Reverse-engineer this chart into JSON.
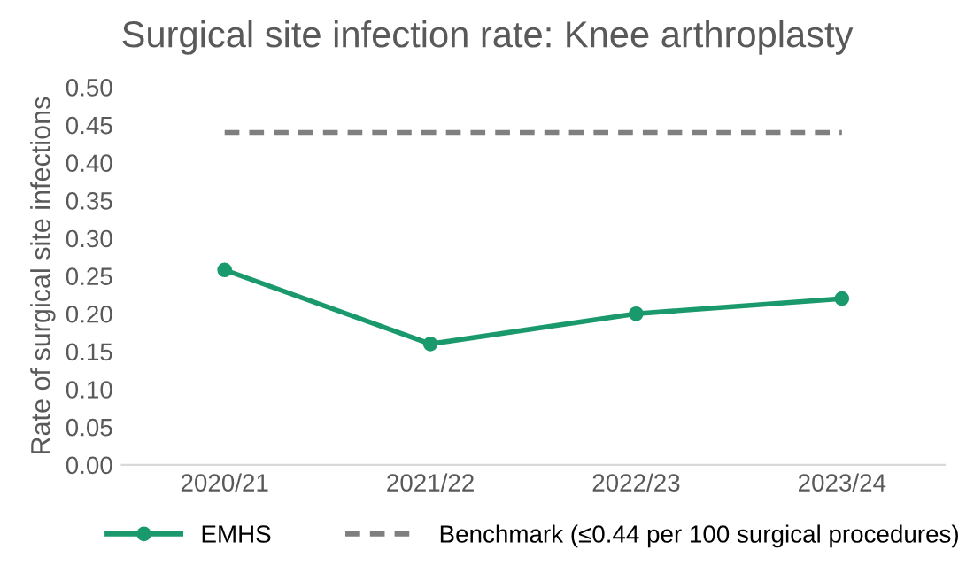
{
  "chart_data": {
    "type": "line",
    "title": "Surgical site infection rate: Knee arthroplasty",
    "ylabel": "Rate of surgical site infections",
    "categories": [
      "2020/21",
      "2021/22",
      "2022/23",
      "2023/24"
    ],
    "series": [
      {
        "name": "EMHS",
        "color": "#1a9a6c",
        "values": [
          0.258,
          0.16,
          0.2,
          0.22
        ],
        "marker": "circle",
        "line_style": "solid"
      },
      {
        "name": "Benchmark (≤0.44 per 100 surgical procedures)",
        "color": "#7f7f7f",
        "values": [
          0.44,
          0.44,
          0.44,
          0.44
        ],
        "marker": "none",
        "line_style": "dashed"
      }
    ],
    "ylim": [
      0,
      0.5
    ],
    "yticks": [
      {
        "value": 0,
        "label": "0.00"
      },
      {
        "value": 0.05,
        "label": "0.05"
      },
      {
        "value": 0.1,
        "label": "0.10"
      },
      {
        "value": 0.15,
        "label": "0.15"
      },
      {
        "value": 0.2,
        "label": "0.20"
      },
      {
        "value": 0.25,
        "label": "0.25"
      },
      {
        "value": 0.3,
        "label": "0.30"
      },
      {
        "value": 0.35,
        "label": "0.35"
      },
      {
        "value": 0.4,
        "label": "0.40"
      },
      {
        "value": 0.45,
        "label": "0.45"
      },
      {
        "value": 0.5,
        "label": "0.50"
      }
    ],
    "grid": false,
    "legend": "bottom"
  }
}
